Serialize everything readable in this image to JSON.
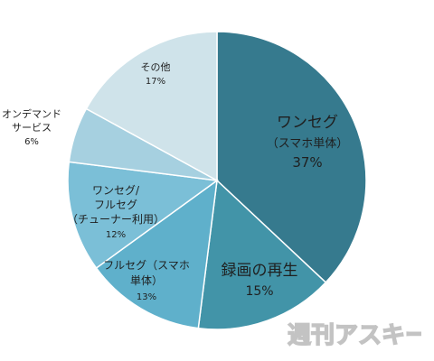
{
  "chart_data": {
    "type": "pie",
    "title": "",
    "start_angle_deg": 0,
    "direction": "clockwise",
    "slices": [
      {
        "label_lines": [
          "ワンセグ",
          "（スマホ単体）"
        ],
        "pct_text": "37%",
        "value": 37,
        "color": "#367a8e"
      },
      {
        "label_lines": [
          "録画の再生"
        ],
        "pct_text": "15%",
        "value": 15,
        "color": "#4294a8"
      },
      {
        "label_lines": [
          "フルセグ（スマホ",
          "単体）"
        ],
        "pct_text": "13%",
        "value": 13,
        "color": "#5fb0cb"
      },
      {
        "label_lines": [
          "ワンセグ/",
          "フルセグ",
          "（チューナー利用）"
        ],
        "pct_text": "12%",
        "value": 12,
        "color": "#7bbfd7"
      },
      {
        "label_lines": [
          "オンデマンド",
          "サービス"
        ],
        "pct_text": "6%",
        "value": 6,
        "color": "#a6d0e0"
      },
      {
        "label_lines": [
          "その他"
        ],
        "pct_text": "17%",
        "value": 17,
        "color": "#cfe3ea"
      }
    ]
  },
  "watermark": {
    "text": "週刊アスキー"
  }
}
